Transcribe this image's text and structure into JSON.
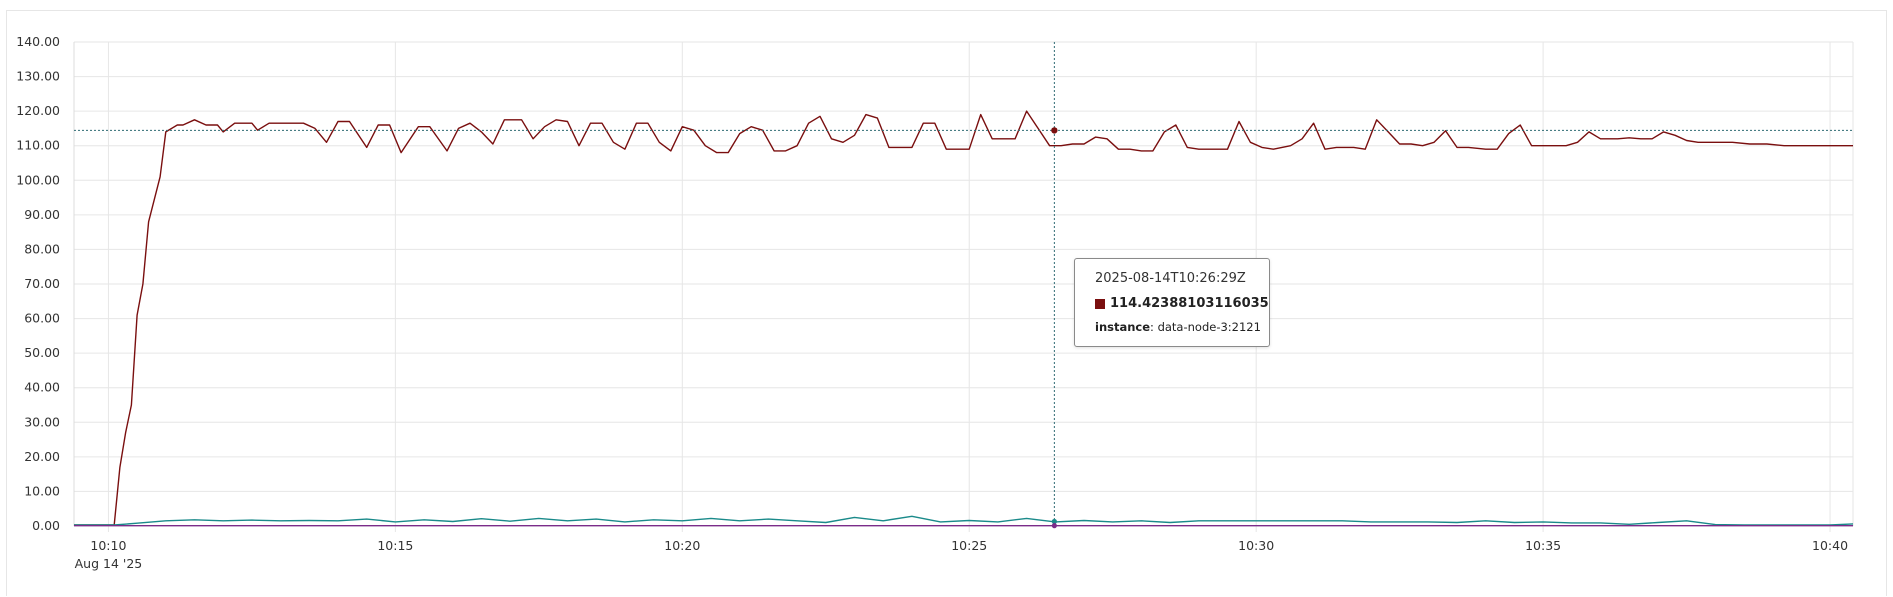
{
  "chart_data": {
    "type": "line",
    "y_ticks": [
      "0.00",
      "10.00",
      "20.00",
      "30.00",
      "40.00",
      "50.00",
      "60.00",
      "70.00",
      "80.00",
      "90.00",
      "100.00",
      "110.00",
      "120.00",
      "130.00",
      "140.00"
    ],
    "ylim": [
      0,
      140
    ],
    "x_ticks": [
      "10:10",
      "10:15",
      "10:20",
      "10:25",
      "10:30",
      "10:35",
      "10:40"
    ],
    "x_date_label": "Aug 14 '25",
    "xlim_minutes": [
      "10:09.4",
      "10:40.4"
    ],
    "grid": true,
    "series": [
      {
        "color": "#7a0f0f",
        "points": [
          [
            "10:09.4",
            0.3
          ],
          [
            "10:10.1",
            0.3
          ],
          [
            "10:10.2",
            17
          ],
          [
            "10:10.3",
            27
          ],
          [
            "10:10.4",
            35
          ],
          [
            "10:10.5",
            61
          ],
          [
            "10:10.6",
            70
          ],
          [
            "10:10.7",
            88
          ],
          [
            "10:10.9",
            101
          ],
          [
            "10:11.0",
            114
          ],
          [
            "10:11.2",
            116
          ],
          [
            "10:11.3",
            116
          ],
          [
            "10:11.5",
            117.5
          ],
          [
            "10:11.7",
            116
          ],
          [
            "10:11.9",
            116
          ],
          [
            "10:12.0",
            114
          ],
          [
            "10:12.2",
            116.5
          ],
          [
            "10:12.5",
            116.5
          ],
          [
            "10:12.6",
            114.5
          ],
          [
            "10:12.8",
            116.5
          ],
          [
            "10:13.4",
            116.5
          ],
          [
            "10:13.6",
            115
          ],
          [
            "10:13.8",
            111
          ],
          [
            "10:14.0",
            117
          ],
          [
            "10:14.2",
            117
          ],
          [
            "10:14.5",
            109.5
          ],
          [
            "10:14.7",
            116
          ],
          [
            "10:14.9",
            116
          ],
          [
            "10:15.1",
            108
          ],
          [
            "10:15.4",
            115.5
          ],
          [
            "10:15.6",
            115.5
          ],
          [
            "10:15.9",
            108.5
          ],
          [
            "10:16.1",
            115
          ],
          [
            "10:16.3",
            116.5
          ],
          [
            "10:16.5",
            114
          ],
          [
            "10:16.7",
            110.5
          ],
          [
            "10:16.9",
            117.5
          ],
          [
            "10:17.2",
            117.5
          ],
          [
            "10:17.4",
            112
          ],
          [
            "10:17.6",
            115.5
          ],
          [
            "10:17.8",
            117.5
          ],
          [
            "10:18.0",
            117
          ],
          [
            "10:18.2",
            110
          ],
          [
            "10:18.4",
            116.5
          ],
          [
            "10:18.6",
            116.5
          ],
          [
            "10:18.8",
            111
          ],
          [
            "10:19.0",
            109
          ],
          [
            "10:19.2",
            116.5
          ],
          [
            "10:19.4",
            116.5
          ],
          [
            "10:19.6",
            111
          ],
          [
            "10:19.8",
            108.5
          ],
          [
            "10:20.0",
            115.5
          ],
          [
            "10:20.2",
            114.5
          ],
          [
            "10:20.4",
            110
          ],
          [
            "10:20.6",
            108
          ],
          [
            "10:20.8",
            108
          ],
          [
            "10:21.0",
            113.5
          ],
          [
            "10:21.2",
            115.5
          ],
          [
            "10:21.4",
            114.5
          ],
          [
            "10:21.6",
            108.5
          ],
          [
            "10:21.8",
            108.5
          ],
          [
            "10:22.0",
            110
          ],
          [
            "10:22.2",
            116.5
          ],
          [
            "10:22.4",
            118.5
          ],
          [
            "10:22.6",
            112
          ],
          [
            "10:22.8",
            111
          ],
          [
            "10:23.0",
            113
          ],
          [
            "10:23.2",
            119
          ],
          [
            "10:23.4",
            118
          ],
          [
            "10:23.6",
            109.5
          ],
          [
            "10:23.8",
            109.5
          ],
          [
            "10:24.0",
            109.5
          ],
          [
            "10:24.2",
            116.5
          ],
          [
            "10:24.4",
            116.5
          ],
          [
            "10:24.6",
            109
          ],
          [
            "10:24.8",
            109
          ],
          [
            "10:25.0",
            109
          ],
          [
            "10:25.2",
            119
          ],
          [
            "10:25.4",
            112
          ],
          [
            "10:25.6",
            112
          ],
          [
            "10:25.8",
            112
          ],
          [
            "10:26.0",
            120
          ],
          [
            "10:26.2",
            115
          ],
          [
            "10:26.4",
            110
          ],
          [
            "10:26.6",
            110
          ],
          [
            "10:26.8",
            110.5
          ],
          [
            "10:27.0",
            110.5
          ],
          [
            "10:27.2",
            112.5
          ],
          [
            "10:27.4",
            112
          ],
          [
            "10:27.6",
            109
          ],
          [
            "10:27.8",
            109
          ],
          [
            "10:28.0",
            108.5
          ],
          [
            "10:28.2",
            108.5
          ],
          [
            "10:28.4",
            114
          ],
          [
            "10:28.6",
            116
          ],
          [
            "10:28.8",
            109.5
          ],
          [
            "10:29.0",
            109
          ],
          [
            "10:29.2",
            109
          ],
          [
            "10:29.5",
            109
          ],
          [
            "10:29.7",
            117
          ],
          [
            "10:29.9",
            111
          ],
          [
            "10:30.1",
            109.5
          ],
          [
            "10:30.3",
            109
          ],
          [
            "10:30.6",
            110
          ],
          [
            "10:30.8",
            112
          ],
          [
            "10:31.0",
            116.5
          ],
          [
            "10:31.2",
            109
          ],
          [
            "10:31.4",
            109.5
          ],
          [
            "10:31.7",
            109.5
          ],
          [
            "10:31.9",
            109
          ],
          [
            "10:32.1",
            117.5
          ],
          [
            "10:32.3",
            114
          ],
          [
            "10:32.5",
            110.5
          ],
          [
            "10:32.7",
            110.5
          ],
          [
            "10:32.9",
            110
          ],
          [
            "10:33.1",
            111
          ],
          [
            "10:33.3",
            114.3
          ],
          [
            "10:33.5",
            109.5
          ],
          [
            "10:33.7",
            109.5
          ],
          [
            "10:34.0",
            109
          ],
          [
            "10:34.2",
            109
          ],
          [
            "10:34.4",
            113.5
          ],
          [
            "10:34.6",
            116
          ],
          [
            "10:34.8",
            110
          ],
          [
            "10:35.0",
            110
          ],
          [
            "10:35.2",
            110
          ],
          [
            "10:35.4",
            110
          ],
          [
            "10:35.6",
            111
          ],
          [
            "10:35.8",
            114
          ],
          [
            "10:36.0",
            112
          ],
          [
            "10:36.3",
            112
          ],
          [
            "10:36.5",
            112.3
          ],
          [
            "10:36.7",
            112
          ],
          [
            "10:36.9",
            112
          ],
          [
            "10:37.1",
            114
          ],
          [
            "10:37.3",
            113
          ],
          [
            "10:37.5",
            111.5
          ],
          [
            "10:37.7",
            111
          ],
          [
            "10:38.0",
            111
          ],
          [
            "10:38.3",
            111
          ],
          [
            "10:38.6",
            110.5
          ],
          [
            "10:38.9",
            110.5
          ],
          [
            "10:39.2",
            110
          ],
          [
            "10:39.5",
            110
          ],
          [
            "10:39.8",
            110
          ],
          [
            "10:40.0",
            110
          ],
          [
            "10:40.2",
            110
          ],
          [
            "10:40.4",
            110
          ]
        ]
      },
      {
        "color": "#1a8a8a",
        "points": [
          [
            "10:09.4",
            0.3
          ],
          [
            "10:10.1",
            0.3
          ],
          [
            "10:10.5",
            0.8
          ],
          [
            "10:11.0",
            1.5
          ],
          [
            "10:11.5",
            1.8
          ],
          [
            "10:12.0",
            1.5
          ],
          [
            "10:12.5",
            1.7
          ],
          [
            "10:13.0",
            1.5
          ],
          [
            "10:13.5",
            1.6
          ],
          [
            "10:14.0",
            1.5
          ],
          [
            "10:14.5",
            2.0
          ],
          [
            "10:15.0",
            1.2
          ],
          [
            "10:15.5",
            1.8
          ],
          [
            "10:16.0",
            1.3
          ],
          [
            "10:16.5",
            2.1
          ],
          [
            "10:17.0",
            1.4
          ],
          [
            "10:17.5",
            2.2
          ],
          [
            "10:18.0",
            1.5
          ],
          [
            "10:18.5",
            2.0
          ],
          [
            "10:19.0",
            1.2
          ],
          [
            "10:19.5",
            1.8
          ],
          [
            "10:20.0",
            1.5
          ],
          [
            "10:20.5",
            2.2
          ],
          [
            "10:21.0",
            1.5
          ],
          [
            "10:21.5",
            2.0
          ],
          [
            "10:22.0",
            1.5
          ],
          [
            "10:22.5",
            1.0
          ],
          [
            "10:23.0",
            2.5
          ],
          [
            "10:23.5",
            1.5
          ],
          [
            "10:24.0",
            2.8
          ],
          [
            "10:24.5",
            1.2
          ],
          [
            "10:25.0",
            1.6
          ],
          [
            "10:25.5",
            1.2
          ],
          [
            "10:26.0",
            2.2
          ],
          [
            "10:26.5",
            1.2
          ],
          [
            "10:27.0",
            1.6
          ],
          [
            "10:27.5",
            1.2
          ],
          [
            "10:28.0",
            1.5
          ],
          [
            "10:28.5",
            1.0
          ],
          [
            "10:29.0",
            1.5
          ],
          [
            "10:29.5",
            1.5
          ],
          [
            "10:30.0",
            1.5
          ],
          [
            "10:30.5",
            1.5
          ],
          [
            "10:31.0",
            1.5
          ],
          [
            "10:31.5",
            1.5
          ],
          [
            "10:32.0",
            1.2
          ],
          [
            "10:32.5",
            1.2
          ],
          [
            "10:33.0",
            1.2
          ],
          [
            "10:33.5",
            1.0
          ],
          [
            "10:34.0",
            1.5
          ],
          [
            "10:34.5",
            1.0
          ],
          [
            "10:35.0",
            1.2
          ],
          [
            "10:35.5",
            0.9
          ],
          [
            "10:36.0",
            0.9
          ],
          [
            "10:36.5",
            0.5
          ],
          [
            "10:37.0",
            1.0
          ],
          [
            "10:37.5",
            1.5
          ],
          [
            "10:38.0",
            0.4
          ],
          [
            "10:38.5",
            0.3
          ],
          [
            "10:39.0",
            0.3
          ],
          [
            "10:39.5",
            0.3
          ],
          [
            "10:40.0",
            0.3
          ],
          [
            "10:40.4",
            0.6
          ]
        ]
      },
      {
        "color": "#7b2c8a",
        "points": [
          [
            "10:09.4",
            0.1
          ],
          [
            "10:40.4",
            0.1
          ]
        ]
      }
    ],
    "crosshair_time": "10:26:29",
    "crosshair_value": 114.42388103116035
  },
  "tooltip": {
    "time": "2025-08-14T10:26:29Z",
    "value": "114.42388103116035",
    "label_key": "instance",
    "label_value": "data-node-3:2121",
    "swatch_color": "#7a0f0f"
  }
}
